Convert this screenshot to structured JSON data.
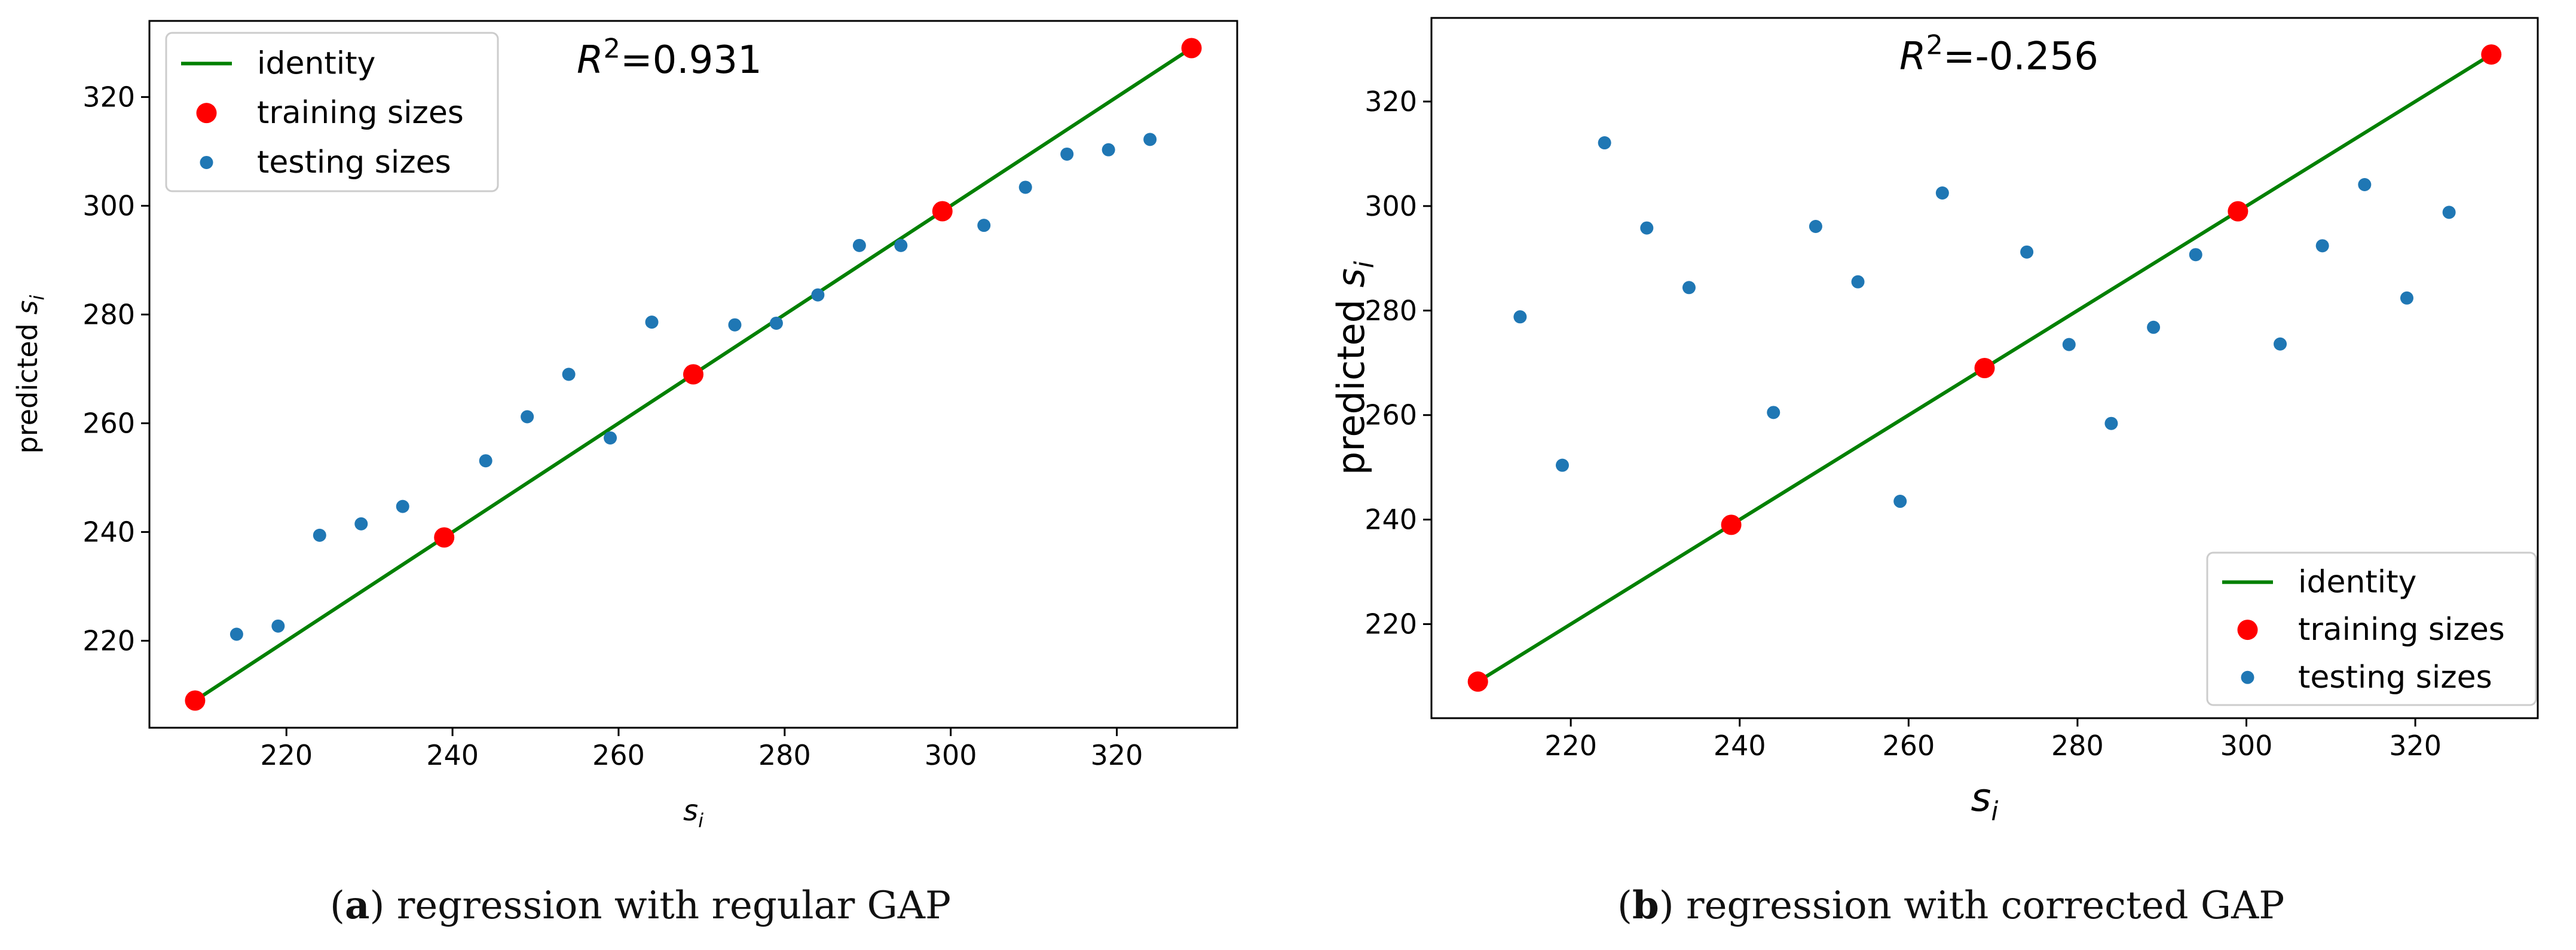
{
  "chart_data": [
    {
      "type": "scatter",
      "panel": "a",
      "xlabel": "s_i",
      "ylabel": "predicted s_i",
      "xlim": [
        203.5,
        334.5
      ],
      "ylim": [
        204.0,
        334.0
      ],
      "xticks": [
        220,
        240,
        260,
        280,
        300,
        320
      ],
      "yticks": [
        220,
        240,
        260,
        280,
        300,
        320
      ],
      "annotation": "R²=0.931",
      "annotation_parts": {
        "base": "R",
        "sup": "2",
        "rest": "=0.931"
      },
      "legend_position": "top-left",
      "series": [
        {
          "name": "identity",
          "kind": "line",
          "color": "#008000",
          "x": [
            209,
            329
          ],
          "y": [
            209,
            329
          ]
        },
        {
          "name": "training sizes",
          "kind": "marker",
          "color": "#ff0000",
          "x": [
            209,
            239,
            269,
            299,
            329
          ],
          "y": [
            209,
            239,
            269,
            299,
            329
          ]
        },
        {
          "name": "testing sizes",
          "kind": "marker",
          "color": "#1f77b4",
          "x": [
            214,
            219,
            224,
            229,
            234,
            244,
            249,
            254,
            259,
            264,
            274,
            279,
            284,
            289,
            294,
            304,
            309,
            314,
            319,
            324
          ],
          "y": [
            221.2,
            222.7,
            239.4,
            241.5,
            244.7,
            253.1,
            261.2,
            269.0,
            257.3,
            278.6,
            278.1,
            278.4,
            283.6,
            292.7,
            292.7,
            296.4,
            303.4,
            309.5,
            310.3,
            312.2
          ]
        }
      ]
    },
    {
      "type": "scatter",
      "panel": "b",
      "xlabel": "s_i",
      "ylabel": "predicted s_i",
      "xlim": [
        203.5,
        334.5
      ],
      "ylim": [
        202.0,
        336.0
      ],
      "xticks": [
        220,
        240,
        260,
        280,
        300,
        320
      ],
      "yticks": [
        220,
        240,
        260,
        280,
        300,
        320
      ],
      "annotation": "R²=-0.256",
      "annotation_parts": {
        "base": "R",
        "sup": "2",
        "rest": "=-0.256"
      },
      "legend_position": "bottom-right",
      "series": [
        {
          "name": "identity",
          "kind": "line",
          "color": "#008000",
          "x": [
            209,
            329
          ],
          "y": [
            209,
            329
          ]
        },
        {
          "name": "training sizes",
          "kind": "marker",
          "color": "#ff0000",
          "x": [
            209,
            239,
            269,
            299,
            329
          ],
          "y": [
            209,
            239,
            269,
            299,
            329
          ]
        },
        {
          "name": "testing sizes",
          "kind": "marker",
          "color": "#1f77b4",
          "x": [
            214,
            219,
            224,
            229,
            234,
            244,
            249,
            254,
            259,
            264,
            274,
            279,
            284,
            289,
            294,
            304,
            309,
            314,
            319,
            324
          ],
          "y": [
            278.8,
            250.4,
            312.1,
            295.8,
            284.4,
            260.5,
            296.1,
            285.5,
            243.5,
            302.5,
            291.2,
            273.5,
            258.4,
            276.8,
            290.7,
            273.6,
            292.4,
            304.1,
            282.4,
            298.8
          ]
        }
      ]
    }
  ],
  "captions": [
    {
      "label": "a",
      "text": " regression with regular GAP"
    },
    {
      "label": "b",
      "text": " regression with corrected GAP"
    }
  ]
}
